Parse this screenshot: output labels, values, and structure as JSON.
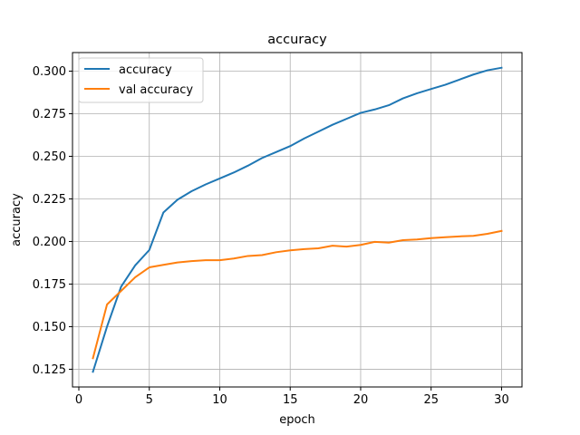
{
  "chart_data": {
    "type": "line",
    "title": "accuracy",
    "xlabel": "epoch",
    "ylabel": "accuracy",
    "xlim": [
      -0.45,
      31.45
    ],
    "ylim": [
      0.1146,
      0.3109
    ],
    "xticks": [
      0,
      5,
      10,
      15,
      20,
      25,
      30
    ],
    "yticks": [
      0.125,
      0.15,
      0.175,
      0.2,
      0.225,
      0.25,
      0.275,
      0.3
    ],
    "ytick_labels": [
      "0.125",
      "0.150",
      "0.175",
      "0.200",
      "0.225",
      "0.250",
      "0.275",
      "0.300"
    ],
    "grid": true,
    "legend_position": "upper-left",
    "x": [
      1,
      2,
      3,
      4,
      5,
      6,
      7,
      8,
      9,
      10,
      11,
      12,
      13,
      14,
      15,
      16,
      17,
      18,
      19,
      20,
      21,
      22,
      23,
      24,
      25,
      26,
      27,
      28,
      29,
      30
    ],
    "series": [
      {
        "name": "accuracy",
        "color": "#1f77b4",
        "values": [
          0.1235,
          0.15,
          0.1735,
          0.186,
          0.195,
          0.217,
          0.2245,
          0.2295,
          0.2335,
          0.237,
          0.2405,
          0.2445,
          0.249,
          0.2525,
          0.256,
          0.2605,
          0.2645,
          0.2685,
          0.272,
          0.2755,
          0.2775,
          0.28,
          0.284,
          0.287,
          0.2895,
          0.292,
          0.295,
          0.298,
          0.3005,
          0.302
        ]
      },
      {
        "name": "val accuracy",
        "color": "#ff7f0e",
        "values": [
          0.1315,
          0.163,
          0.171,
          0.179,
          0.1848,
          0.1863,
          0.1877,
          0.1885,
          0.189,
          0.189,
          0.19,
          0.1915,
          0.192,
          0.1937,
          0.1948,
          0.1955,
          0.196,
          0.1975,
          0.197,
          0.198,
          0.1998,
          0.1993,
          0.2008,
          0.2012,
          0.202,
          0.2025,
          0.203,
          0.2033,
          0.2045,
          0.2062
        ]
      }
    ]
  }
}
